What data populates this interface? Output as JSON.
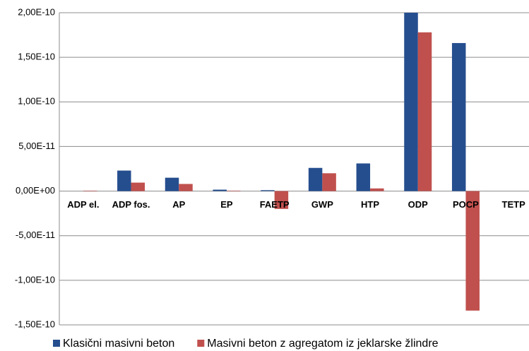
{
  "chart_data": {
    "type": "bar",
    "categories": [
      "ADP el.",
      "ADP fos.",
      "AP",
      "EP",
      "FAETP",
      "GWP",
      "HTP",
      "ODP",
      "POCP",
      "TETP"
    ],
    "series": [
      {
        "name": "Klasični masivni beton",
        "color": "#254e8e",
        "values": [
          0,
          2.3e-11,
          1.5e-11,
          1.6e-12,
          1e-12,
          2.6e-11,
          3.1e-11,
          2e-10,
          1.66e-10,
          0
        ]
      },
      {
        "name": "Masivni beton z agregatom iz jeklarske žlindre",
        "color": "#c0504d",
        "values": [
          5e-13,
          9.5e-12,
          8e-12,
          5e-13,
          -2e-11,
          2e-11,
          3e-12,
          1.78e-10,
          -1.34e-10,
          0
        ]
      }
    ],
    "ylim": [
      -1.5e-10,
      2e-10
    ],
    "yticks": [
      {
        "value": -1.5e-10,
        "label": "-1,50E-10"
      },
      {
        "value": -1e-10,
        "label": "-1,00E-10"
      },
      {
        "value": -5e-11,
        "label": "-5,00E-11"
      },
      {
        "value": 0,
        "label": "0,00E+00"
      },
      {
        "value": 5e-11,
        "label": "5,00E-11"
      },
      {
        "value": 1e-10,
        "label": "1,00E-10"
      },
      {
        "value": 1.5e-10,
        "label": "1,50E-10"
      },
      {
        "value": 2e-10,
        "label": "2,00E-10"
      }
    ],
    "grid": true,
    "legend": "bottom"
  }
}
